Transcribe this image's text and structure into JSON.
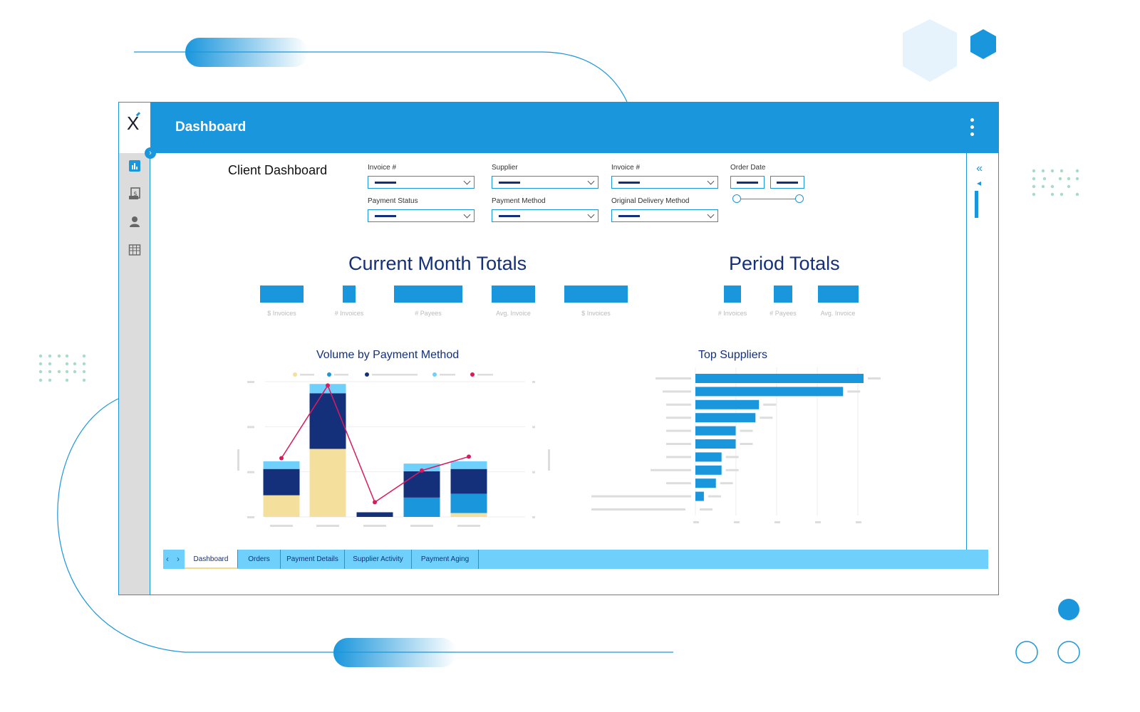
{
  "header": {
    "title": "Dashboard"
  },
  "sidebar": {
    "logo": "X",
    "items": [
      {
        "icon": "bar-chart-icon"
      },
      {
        "icon": "invoice-dollar-icon"
      },
      {
        "icon": "user-icon"
      },
      {
        "icon": "building-icon"
      }
    ]
  },
  "page": {
    "title": "Client Dashboard"
  },
  "filters": {
    "invoice1": {
      "label": "Invoice #"
    },
    "supplier": {
      "label": "Supplier"
    },
    "invoice2": {
      "label": "Invoice #"
    },
    "order_date": {
      "label": "Order Date"
    },
    "payment_status": {
      "label": "Payment Status"
    },
    "payment_method": {
      "label": "Payment Method"
    },
    "original_delivery": {
      "label": "Original Delivery Method"
    }
  },
  "current_month": {
    "title": "Current Month Totals",
    "kpis": [
      {
        "label": "$ Invoices"
      },
      {
        "label": "# Invoices"
      },
      {
        "label": "# Payees"
      },
      {
        "label": "Avg. Invoice"
      },
      {
        "label": "$ Invoices"
      }
    ]
  },
  "period": {
    "title": "Period Totals",
    "kpis": [
      {
        "label": "# Invoices"
      },
      {
        "label": "# Payees"
      },
      {
        "label": "Avg. Invoice"
      }
    ]
  },
  "charts": {
    "volume_title": "Volume by Payment Method",
    "suppliers_title": "Top Suppliers"
  },
  "chart_data": [
    {
      "type": "bar",
      "title": "Volume by Payment Method",
      "stacked": true,
      "categories": [
        "",
        "",
        "",
        "",
        ""
      ],
      "series": [
        {
          "color": "#f4e09c",
          "values": [
            28,
            88,
            0,
            0,
            5
          ]
        },
        {
          "color": "#1a96dc",
          "values": [
            0,
            0,
            0,
            25,
            25
          ]
        },
        {
          "color": "#14307a",
          "values": [
            34,
            72,
            6,
            34,
            32
          ]
        },
        {
          "color": "#6fd1fb",
          "values": [
            10,
            12,
            0,
            10,
            10
          ]
        }
      ],
      "line": {
        "color": "#d81b60",
        "values": [
          76,
          170,
          19,
          60,
          78
        ]
      },
      "ylim": [
        0,
        175
      ]
    },
    {
      "type": "bar",
      "orientation": "horizontal",
      "title": "Top Suppliers",
      "categories": [
        "",
        "",
        "",
        "",
        "",
        "",
        "",
        "",
        "",
        ""
      ],
      "values": [
        238,
        209,
        90,
        85,
        57,
        57,
        37,
        37,
        29,
        12
      ],
      "xlim": [
        0,
        240
      ]
    }
  ],
  "tabs": [
    {
      "label": "Dashboard",
      "active": true
    },
    {
      "label": "Orders"
    },
    {
      "label": "Payment Details"
    },
    {
      "label": "Supplier Activity"
    },
    {
      "label": "Payment Aging"
    }
  ],
  "colors": {
    "primary": "#1a96dc",
    "navy": "#14307a",
    "light": "#6fd1fb",
    "yellow": "#f4e09c",
    "accent": "#d81b60"
  }
}
